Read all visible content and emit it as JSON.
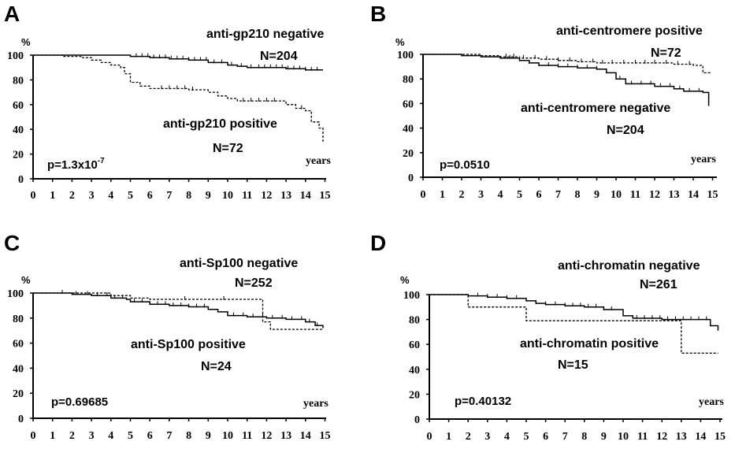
{
  "chart_data": [
    {
      "type": "line",
      "panel": "A",
      "y_unit": "%",
      "xlabel": "years",
      "xlim": [
        0,
        15
      ],
      "ylim": [
        0,
        100
      ],
      "x_ticks": [
        "0",
        "1",
        "2",
        "3",
        "4",
        "5",
        "6",
        "7",
        "8",
        "9",
        "10",
        "11",
        "12",
        "13",
        "14",
        "15"
      ],
      "y_ticks": [
        "0",
        "20",
        "40",
        "60",
        "80",
        "100"
      ],
      "p_value": "p=1.3x10",
      "p_value_exponent": "-7",
      "labels": [
        {
          "name": "anti-gp210 negative",
          "n": "N=204"
        },
        {
          "name": "anti-gp210 positive",
          "n": "N=72"
        }
      ],
      "series": [
        {
          "style": "solid",
          "points": [
            [
              0,
              100
            ],
            [
              5,
              99
            ],
            [
              6,
              98
            ],
            [
              7,
              97
            ],
            [
              8,
              96
            ],
            [
              9,
              94
            ],
            [
              10,
              92
            ],
            [
              10.5,
              91
            ],
            [
              11,
              90
            ],
            [
              13,
              89
            ],
            [
              14,
              88
            ],
            [
              14.9,
              88
            ]
          ],
          "censors": [
            5.3,
            5.6,
            5.9,
            6.2,
            6.5,
            6.8,
            7.1,
            7.4,
            7.7,
            8.0,
            8.3,
            8.6,
            8.9,
            9.3,
            9.7,
            10.2,
            10.7,
            11.2,
            11.6,
            11.9,
            12.2,
            12.5,
            12.8,
            13.1,
            13.4,
            13.7,
            14.0,
            14.3,
            14.6
          ]
        },
        {
          "style": "dashed",
          "points": [
            [
              0,
              100
            ],
            [
              1.5,
              99
            ],
            [
              2.5,
              98
            ],
            [
              3,
              96
            ],
            [
              3.5,
              94
            ],
            [
              4,
              92
            ],
            [
              4.5,
              90
            ],
            [
              4.7,
              85
            ],
            [
              5,
              78
            ],
            [
              5.5,
              75
            ],
            [
              6,
              73
            ],
            [
              8,
              72
            ],
            [
              9,
              70
            ],
            [
              9.5,
              67
            ],
            [
              10,
              65
            ],
            [
              10.5,
              63
            ],
            [
              13,
              60
            ],
            [
              13.5,
              57
            ],
            [
              14,
              55
            ],
            [
              14.3,
              46
            ],
            [
              14.7,
              41
            ],
            [
              14.9,
              30
            ]
          ],
          "censors": [
            6.6,
            7.0,
            7.4,
            7.8,
            8.2,
            10.8,
            11.2,
            11.6,
            12.0,
            12.4,
            13.8
          ]
        }
      ]
    },
    {
      "type": "line",
      "panel": "B",
      "y_unit": "%",
      "xlabel": "years",
      "xlim": [
        0,
        15
      ],
      "ylim": [
        0,
        100
      ],
      "x_ticks": [
        "0",
        "1",
        "2",
        "3",
        "4",
        "5",
        "6",
        "7",
        "8",
        "9",
        "10",
        "11",
        "12",
        "13",
        "14",
        "15"
      ],
      "y_ticks": [
        "0",
        "20",
        "40",
        "60",
        "80",
        "100"
      ],
      "p_value": "p=0.0510",
      "p_value_exponent": "",
      "labels": [
        {
          "name": "anti-centromere positive",
          "n": "N=72"
        },
        {
          "name": "anti-centromere negative",
          "n": "N=204"
        }
      ],
      "series": [
        {
          "style": "dashed",
          "points": [
            [
              0,
              100
            ],
            [
              3,
              99
            ],
            [
              4,
              98
            ],
            [
              5,
              97
            ],
            [
              6,
              96
            ],
            [
              7,
              95
            ],
            [
              8,
              94
            ],
            [
              9,
              93
            ],
            [
              11,
              93
            ],
            [
              13,
              92
            ],
            [
              14,
              91
            ],
            [
              14.5,
              85
            ],
            [
              14.9,
              85
            ]
          ],
          "censors": [
            4.3,
            4.7,
            5.2,
            5.8,
            6.4,
            7.0,
            7.6,
            8.2,
            8.8,
            9.3,
            9.8,
            10.4,
            11.0,
            11.5,
            12.0,
            12.6,
            13.2,
            13.8
          ]
        },
        {
          "style": "solid",
          "points": [
            [
              0,
              100
            ],
            [
              2,
              99
            ],
            [
              3,
              98
            ],
            [
              4,
              97
            ],
            [
              5,
              95
            ],
            [
              5.5,
              93
            ],
            [
              6,
              91
            ],
            [
              7,
              90
            ],
            [
              8,
              89
            ],
            [
              9,
              88
            ],
            [
              9.5,
              85
            ],
            [
              10,
              80
            ],
            [
              10.5,
              76
            ],
            [
              12,
              74
            ],
            [
              13,
              72
            ],
            [
              13.5,
              70
            ],
            [
              14.5,
              69
            ],
            [
              14.8,
              58
            ]
          ],
          "censors": [
            4.5,
            5.0,
            5.5,
            6.0,
            6.5,
            7.0,
            7.5,
            8.0,
            8.5,
            9.0,
            10.2,
            10.8,
            11.3,
            11.8,
            12.3,
            12.8,
            13.3,
            13.8,
            14.3
          ]
        }
      ]
    },
    {
      "type": "line",
      "panel": "C",
      "y_unit": "%",
      "xlabel": "years",
      "xlim": [
        0,
        15
      ],
      "ylim": [
        0,
        100
      ],
      "x_ticks": [
        "0",
        "1",
        "2",
        "3",
        "4",
        "5",
        "6",
        "7",
        "8",
        "9",
        "10",
        "11",
        "12",
        "13",
        "14",
        "15"
      ],
      "y_ticks": [
        "0",
        "20",
        "40",
        "60",
        "80",
        "100"
      ],
      "p_value": "p=0.69685",
      "p_value_exponent": "",
      "labels": [
        {
          "name": "anti-Sp100 negative",
          "n": "N=252"
        },
        {
          "name": "anti-Sp100 positive",
          "n": "N=24"
        }
      ],
      "series": [
        {
          "style": "solid",
          "points": [
            [
              0,
              100
            ],
            [
              2,
              99
            ],
            [
              3,
              98
            ],
            [
              4,
              96
            ],
            [
              4.8,
              95
            ],
            [
              5,
              93
            ],
            [
              6,
              91
            ],
            [
              7,
              90
            ],
            [
              8,
              89
            ],
            [
              9,
              87
            ],
            [
              9.5,
              85
            ],
            [
              10,
              82
            ],
            [
              11,
              81
            ],
            [
              12,
              80
            ],
            [
              13,
              79
            ],
            [
              14,
              77
            ],
            [
              14.5,
              74
            ],
            [
              14.9,
              72
            ]
          ],
          "censors": [
            1.5,
            2.2,
            2.8,
            3.3,
            3.8,
            4.2,
            4.6,
            5.2,
            5.6,
            6.0,
            6.4,
            6.8,
            7.2,
            7.6,
            8.0,
            8.4,
            8.8,
            10.3,
            10.8,
            11.3,
            11.8,
            12.3,
            12.8,
            13.3,
            13.8,
            14.2,
            14.6
          ]
        },
        {
          "style": "dashed",
          "points": [
            [
              0,
              100
            ],
            [
              4,
              98
            ],
            [
              5,
              96
            ],
            [
              6,
              95
            ],
            [
              11.8,
              94
            ],
            [
              11.8,
              77
            ],
            [
              12.2,
              71
            ],
            [
              14.9,
              71
            ]
          ],
          "censors": [
            7.8,
            9.8
          ]
        }
      ]
    },
    {
      "type": "line",
      "panel": "D",
      "y_unit": "%",
      "xlabel": "years",
      "xlim": [
        0,
        15
      ],
      "ylim": [
        0,
        100
      ],
      "x_ticks": [
        "0",
        "1",
        "2",
        "3",
        "4",
        "5",
        "6",
        "7",
        "8",
        "9",
        "10",
        "11",
        "12",
        "13",
        "14",
        "15"
      ],
      "y_ticks": [
        "0",
        "20",
        "40",
        "60",
        "80",
        "100"
      ],
      "p_value": "p=0.40132",
      "p_value_exponent": "",
      "labels": [
        {
          "name": "anti-chromatin negative",
          "n": "N=261"
        },
        {
          "name": "anti-chromatin positive",
          "n": "N=15"
        }
      ],
      "series": [
        {
          "style": "solid",
          "points": [
            [
              0,
              100
            ],
            [
              2,
              99
            ],
            [
              3,
              98
            ],
            [
              4,
              97
            ],
            [
              5,
              95
            ],
            [
              5.5,
              93
            ],
            [
              6,
              92
            ],
            [
              7,
              91
            ],
            [
              8,
              90
            ],
            [
              9,
              88
            ],
            [
              10,
              83
            ],
            [
              10.5,
              81
            ],
            [
              11,
              81
            ],
            [
              12,
              80
            ],
            [
              13,
              80
            ],
            [
              14,
              80
            ],
            [
              14.5,
              75
            ],
            [
              14.9,
              71
            ]
          ],
          "censors": [
            2.5,
            3.0,
            3.5,
            4.0,
            4.5,
            5.0,
            5.5,
            6.0,
            6.5,
            7.0,
            7.4,
            7.8,
            8.2,
            8.6,
            9.0,
            9.4,
            10.7,
            11.1,
            11.5,
            11.9,
            12.3,
            12.7,
            13.1,
            13.5,
            13.9,
            14.3
          ]
        },
        {
          "style": "dashed",
          "points": [
            [
              0,
              100
            ],
            [
              2,
              100
            ],
            [
              2,
              90
            ],
            [
              5,
              90
            ],
            [
              5,
              79
            ],
            [
              13,
              79
            ],
            [
              13,
              53
            ],
            [
              14.9,
              53
            ]
          ],
          "censors": []
        }
      ]
    }
  ]
}
